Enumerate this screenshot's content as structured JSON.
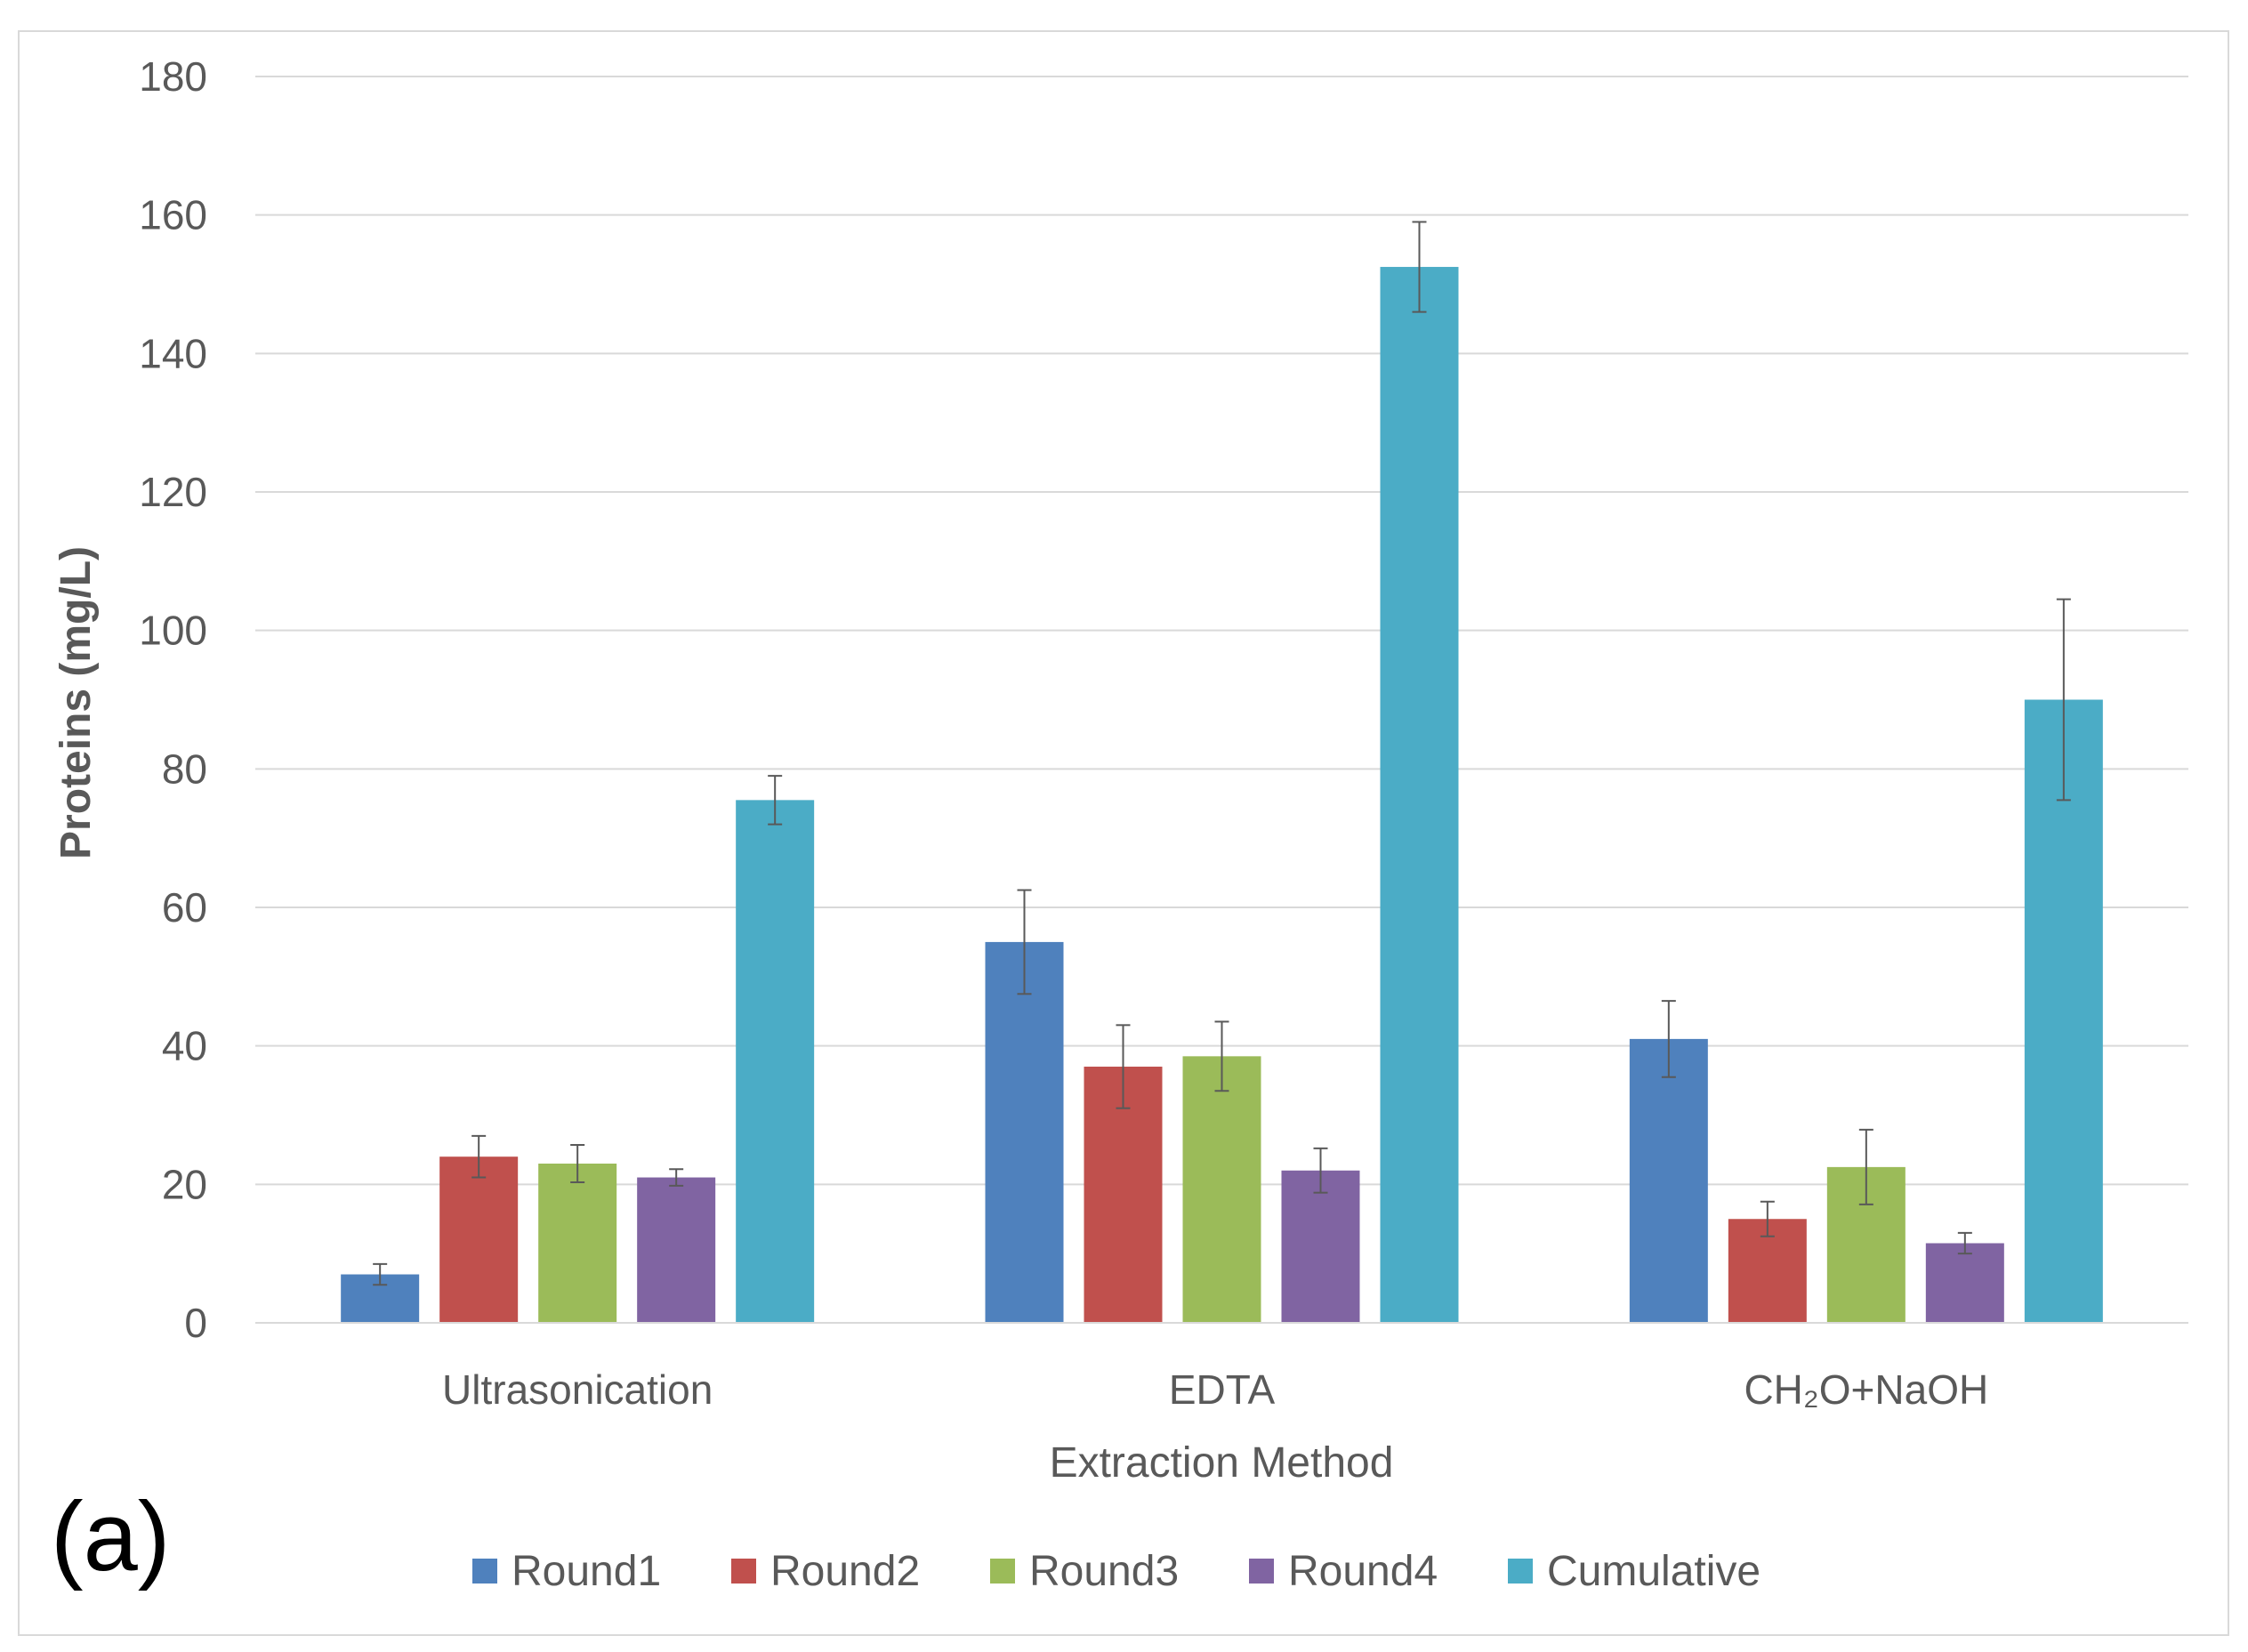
{
  "chart_data": {
    "type": "bar",
    "title": "",
    "panel_label": "(a)",
    "xlabel": "Extraction Method",
    "ylabel": "Proteins (mg/L)",
    "ylim": [
      0,
      180
    ],
    "yticks": [
      0,
      20,
      40,
      60,
      80,
      100,
      120,
      140,
      160,
      180
    ],
    "grid": true,
    "legend_position": "bottom",
    "categories": [
      "Ultrasonication",
      "EDTA",
      "CH₂O+NaOH"
    ],
    "series": [
      {
        "name": "Round1",
        "color": "#4f81bd",
        "values": [
          7,
          55,
          41
        ],
        "errors": [
          1.5,
          7.5,
          5.5
        ]
      },
      {
        "name": "Round2",
        "color": "#c0504d",
        "values": [
          24,
          37,
          15
        ],
        "errors": [
          3,
          6,
          2.5
        ]
      },
      {
        "name": "Round3",
        "color": "#9bbb59",
        "values": [
          23,
          38.5,
          22.5
        ],
        "errors": [
          2.7,
          5,
          5.4
        ]
      },
      {
        "name": "Round4",
        "color": "#8064a2",
        "values": [
          21,
          22,
          11.5
        ],
        "errors": [
          1.2,
          3.2,
          1.5
        ]
      },
      {
        "name": "Cumulative",
        "color": "#4bacc6",
        "values": [
          75.5,
          152.5,
          90
        ],
        "errors": [
          3.5,
          6.5,
          14.5
        ]
      }
    ]
  }
}
